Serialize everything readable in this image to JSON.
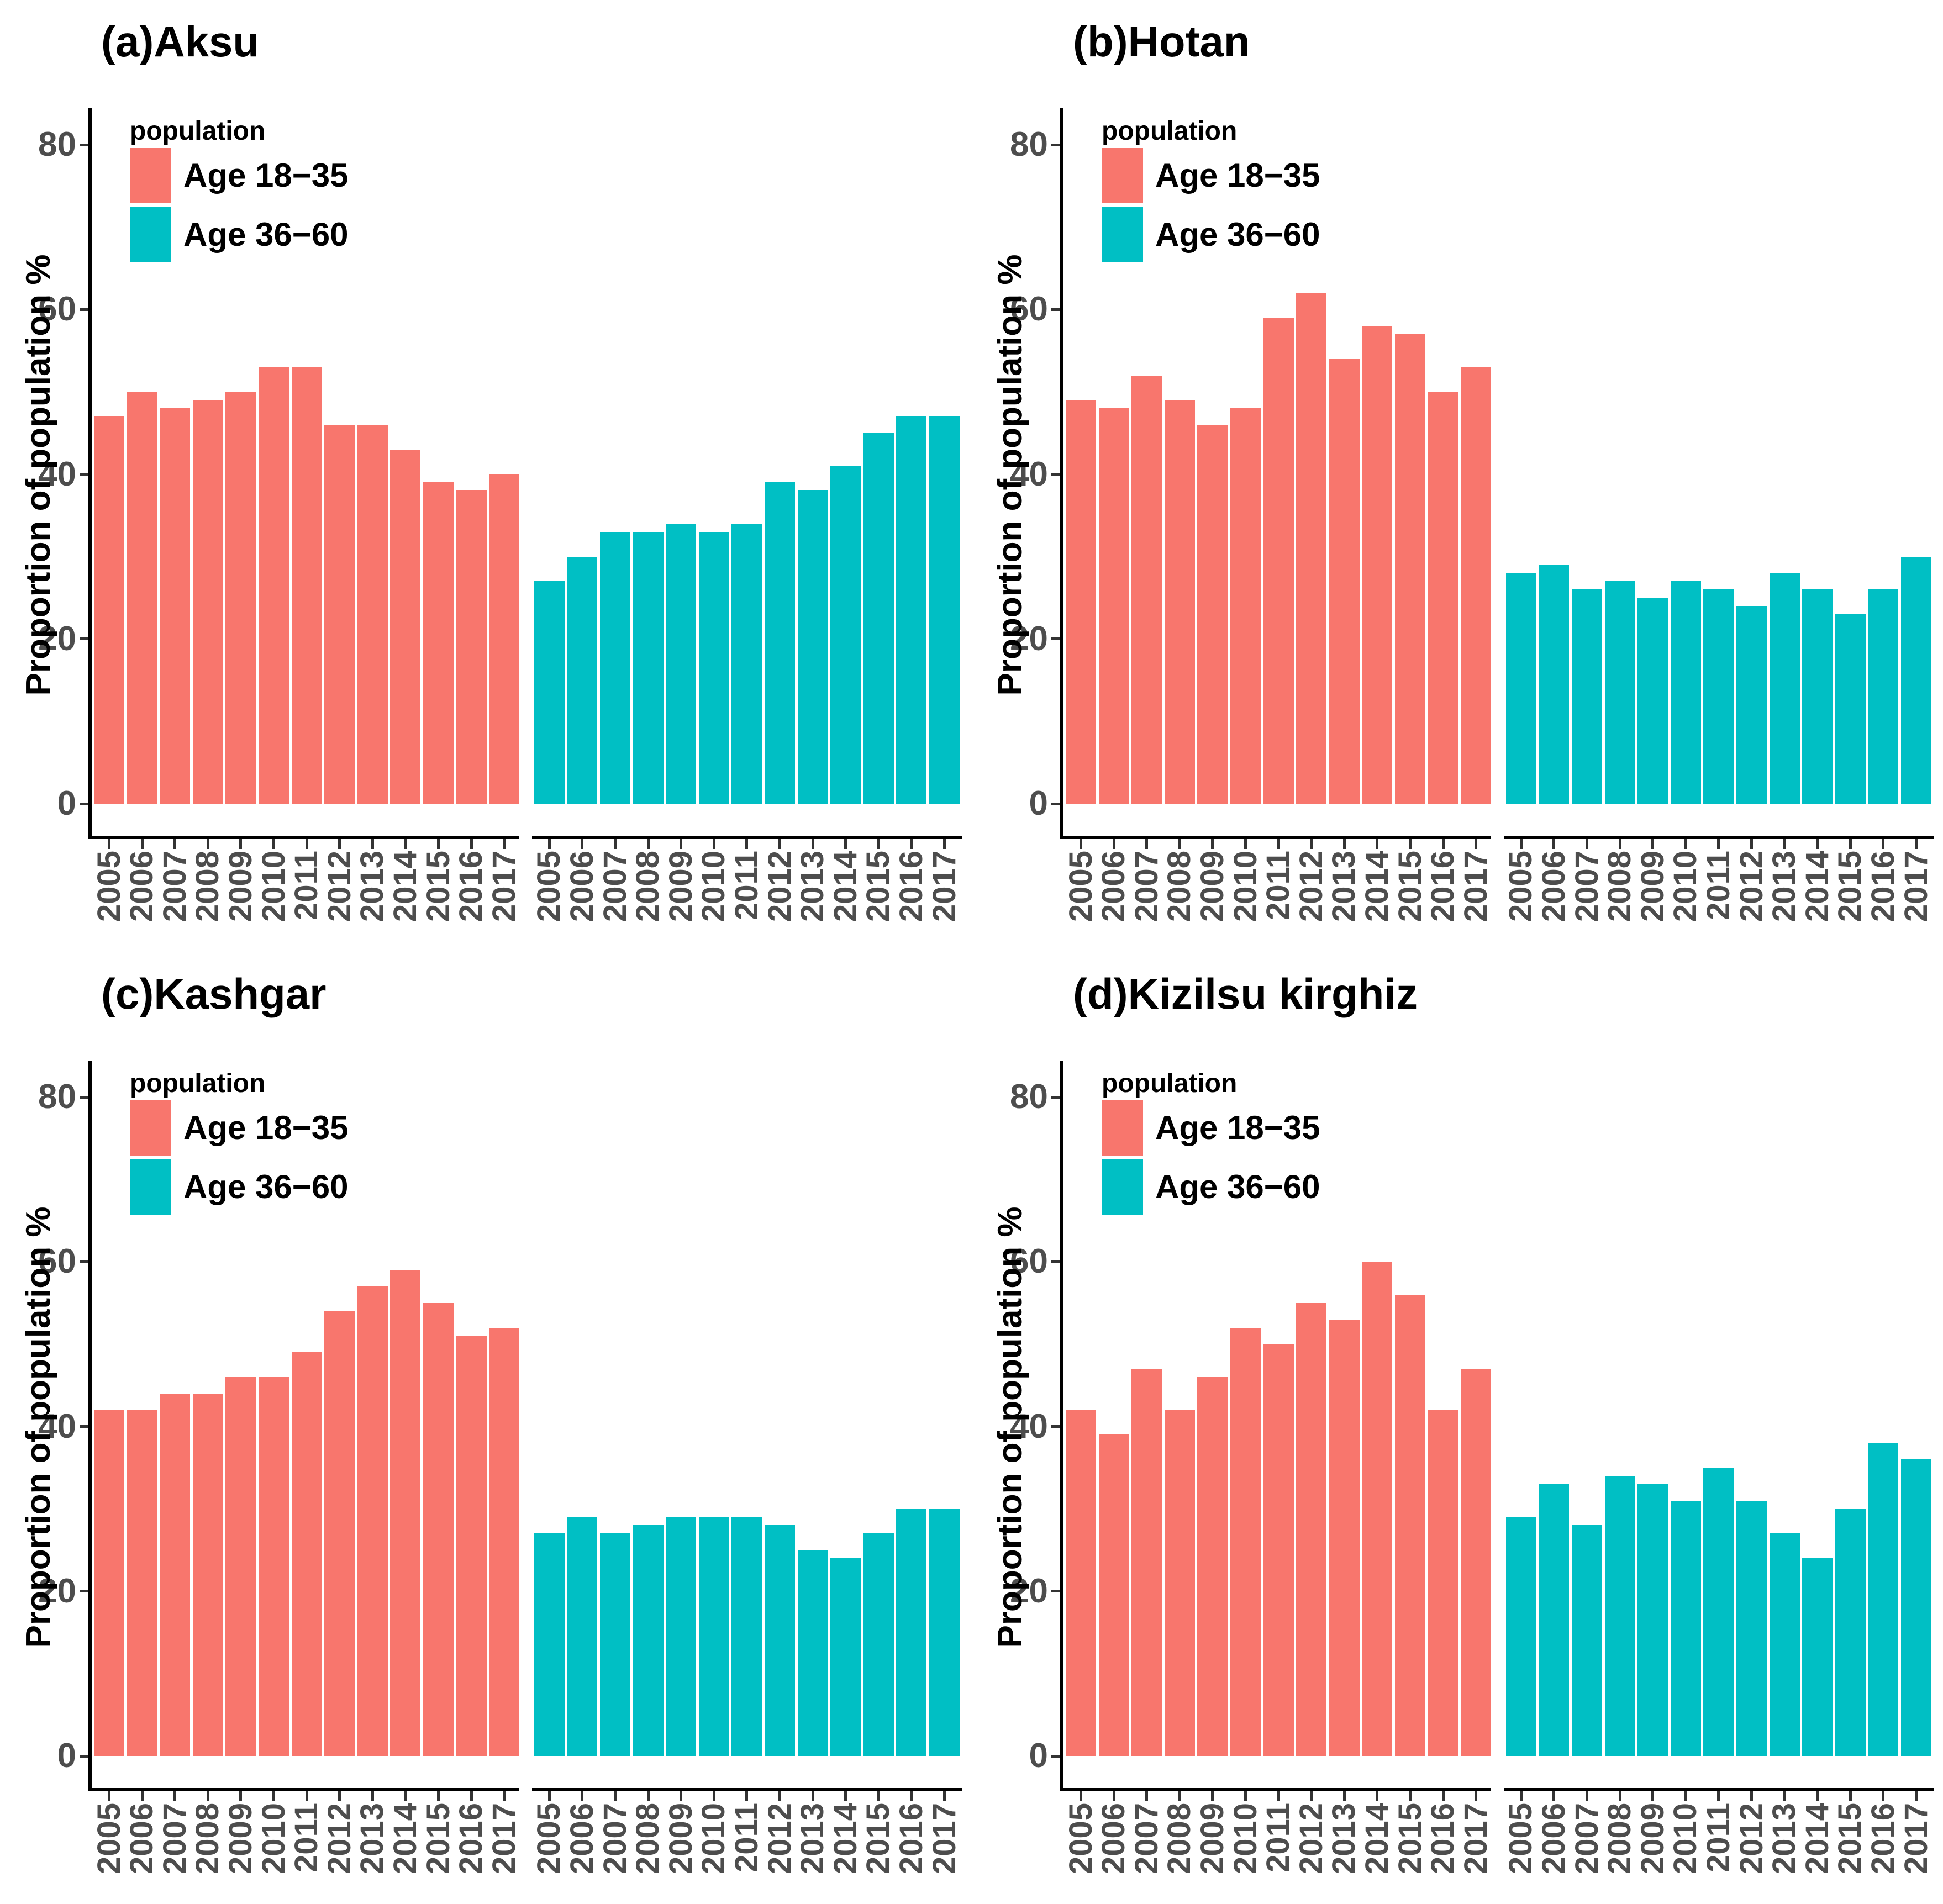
{
  "figure": {
    "background": "#ffffff",
    "legend_title": "population",
    "ylabel": "Proportion of population %",
    "yticks": [
      "0",
      "20",
      "40",
      "60",
      "80"
    ],
    "ytick_values": [
      0,
      20,
      40,
      60,
      80
    ],
    "categories": [
      "2005",
      "2006",
      "2007",
      "2008",
      "2009",
      "2010",
      "2011",
      "2012",
      "2013",
      "2014",
      "2015",
      "2016",
      "2017"
    ]
  },
  "colors": {
    "age_18_35": "#F8766D",
    "age_36_60": "#00BFC4",
    "axis_line": "#000000",
    "tick_mark": "#333333",
    "tick_label": "#4d4d4d",
    "text": "#000000"
  },
  "chart_data": [
    {
      "type": "bar",
      "title": "(a)Aksu",
      "xlabel": "",
      "ylabel": "Proportion of population %",
      "ylim": [
        0,
        84
      ],
      "yticks": [
        0,
        20,
        40,
        60,
        80
      ],
      "grid": false,
      "legend_title": "population",
      "legend_position": "top-left-inside",
      "categories": [
        "2005",
        "2006",
        "2007",
        "2008",
        "2009",
        "2010",
        "2011",
        "2012",
        "2013",
        "2014",
        "2015",
        "2016",
        "2017"
      ],
      "series": [
        {
          "name": "Age 18−35",
          "color": "#F8766D",
          "values": [
            47,
            50,
            48,
            49,
            50,
            53,
            53,
            46,
            46,
            43,
            39,
            38,
            40
          ]
        },
        {
          "name": "Age 36−60",
          "color": "#00BFC4",
          "values": [
            27,
            30,
            33,
            33,
            34,
            33,
            34,
            39,
            38,
            41,
            45,
            47,
            47
          ]
        }
      ]
    },
    {
      "type": "bar",
      "title": "(b)Hotan",
      "xlabel": "",
      "ylabel": "Proportion of population %",
      "ylim": [
        0,
        84
      ],
      "yticks": [
        0,
        20,
        40,
        60,
        80
      ],
      "grid": false,
      "legend_title": "population",
      "legend_position": "top-left-inside",
      "categories": [
        "2005",
        "2006",
        "2007",
        "2008",
        "2009",
        "2010",
        "2011",
        "2012",
        "2013",
        "2014",
        "2015",
        "2016",
        "2017"
      ],
      "series": [
        {
          "name": "Age 18−35",
          "color": "#F8766D",
          "values": [
            49,
            48,
            52,
            49,
            46,
            48,
            59,
            62,
            54,
            58,
            57,
            50,
            53
          ]
        },
        {
          "name": "Age 36−60",
          "color": "#00BFC4",
          "values": [
            28,
            29,
            26,
            27,
            25,
            27,
            26,
            24,
            28,
            26,
            23,
            26,
            30
          ]
        }
      ]
    },
    {
      "type": "bar",
      "title": "(c)Kashgar",
      "xlabel": "",
      "ylabel": "Proportion of population %",
      "ylim": [
        0,
        84
      ],
      "yticks": [
        0,
        20,
        40,
        60,
        80
      ],
      "grid": false,
      "legend_title": "population",
      "legend_position": "top-left-inside",
      "categories": [
        "2005",
        "2006",
        "2007",
        "2008",
        "2009",
        "2010",
        "2011",
        "2012",
        "2013",
        "2014",
        "2015",
        "2016",
        "2017"
      ],
      "series": [
        {
          "name": "Age 18−35",
          "color": "#F8766D",
          "values": [
            42,
            42,
            44,
            44,
            46,
            46,
            49,
            54,
            57,
            59,
            55,
            51,
            52
          ]
        },
        {
          "name": "Age 36−60",
          "color": "#00BFC4",
          "values": [
            27,
            29,
            27,
            28,
            29,
            29,
            29,
            28,
            25,
            24,
            27,
            30,
            30
          ]
        }
      ]
    },
    {
      "type": "bar",
      "title": "(d)Kizilsu kirghiz",
      "xlabel": "",
      "ylabel": "Proportion of population %",
      "ylim": [
        0,
        84
      ],
      "yticks": [
        0,
        20,
        40,
        60,
        80
      ],
      "grid": false,
      "legend_title": "population",
      "legend_position": "top-left-inside",
      "categories": [
        "2005",
        "2006",
        "2007",
        "2008",
        "2009",
        "2010",
        "2011",
        "2012",
        "2013",
        "2014",
        "2015",
        "2016",
        "2017"
      ],
      "series": [
        {
          "name": "Age 18−35",
          "color": "#F8766D",
          "values": [
            42,
            39,
            47,
            42,
            46,
            52,
            50,
            55,
            53,
            60,
            56,
            42,
            47
          ]
        },
        {
          "name": "Age 36−60",
          "color": "#00BFC4",
          "values": [
            29,
            33,
            28,
            34,
            33,
            31,
            35,
            31,
            27,
            24,
            30,
            38,
            36
          ]
        }
      ]
    }
  ]
}
